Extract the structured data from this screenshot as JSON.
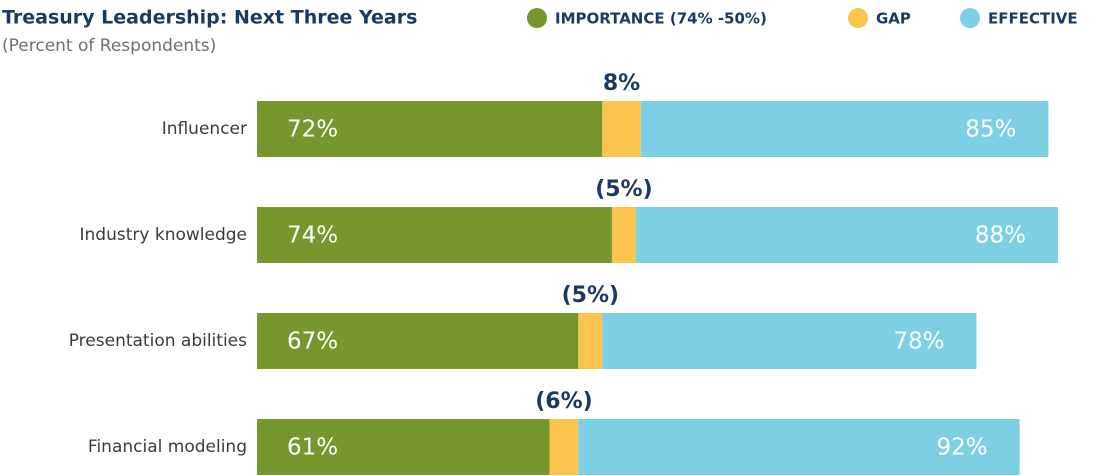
{
  "chart_data": {
    "type": "stacked-bar-horizontal",
    "title": "Treasury Leadership: Next Three Years",
    "subtitle": "(Percent of Respondents)",
    "categories": [
      "Influencer",
      "Industry knowledge",
      "Presentation abilities",
      "Financial modeling"
    ],
    "series": [
      {
        "name": "IMPORTANCE (74% -50%)",
        "color": "#76962e",
        "values": [
          72,
          74,
          67,
          61
        ],
        "value_labels": [
          "72%",
          "74%",
          "67%",
          "61%"
        ]
      },
      {
        "name": "GAP",
        "color": "#fcc44f",
        "values": [
          8,
          -5,
          -5,
          -6
        ],
        "value_labels": [
          "8%",
          "(5%)",
          "(5%)",
          "(6%)"
        ]
      },
      {
        "name": "EFFECTIVE",
        "color": "#7dd0e3",
        "values": [
          85,
          88,
          78,
          92
        ],
        "value_labels": [
          "85%",
          "88%",
          "78%",
          "92%"
        ]
      }
    ]
  }
}
